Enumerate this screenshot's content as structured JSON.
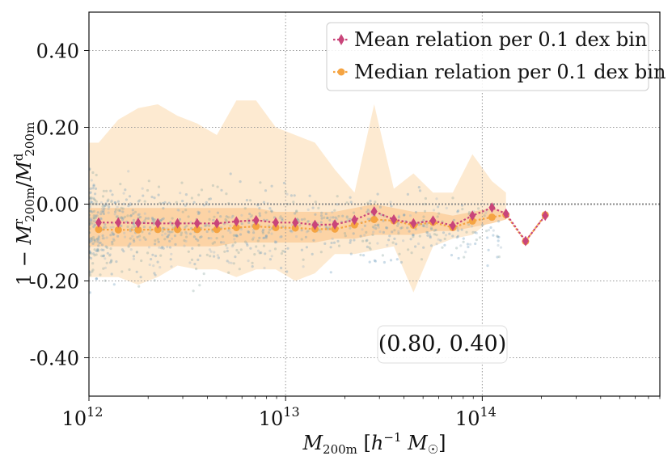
{
  "chart_data": {
    "type": "scatter",
    "title": "",
    "xlabel": "M_200m [h^-1 M_☉]",
    "ylabel": "1 − M^r_200m / M^d_200m",
    "xscale": "log",
    "xlim": [
      1000000000000.0,
      800000000000000.0
    ],
    "ylim": [
      -0.5,
      0.5
    ],
    "x_ticks": [
      {
        "value": 1000000000000.0,
        "base": "10",
        "exp": "12"
      },
      {
        "value": 10000000000000.0,
        "base": "10",
        "exp": "13"
      },
      {
        "value": 100000000000000.0,
        "base": "10",
        "exp": "14"
      }
    ],
    "y_ticks": [
      {
        "value": 0.4,
        "label": "0.40"
      },
      {
        "value": 0.2,
        "label": "0.20"
      },
      {
        "value": 0.0,
        "label": "0.00"
      },
      {
        "value": -0.2,
        "label": "-0.20"
      },
      {
        "value": -0.4,
        "label": "-0.40"
      }
    ],
    "grid": true,
    "annotation": "(0.80, 0.40)",
    "legend": {
      "position": "top-right"
    },
    "series": [
      {
        "name": "Mean relation per 0.1 dex bin",
        "color": "#c9457a",
        "marker": "diamond",
        "x": [
          1120000000000.0,
          1410000000000.0,
          1780000000000.0,
          2240000000000.0,
          2820000000000.0,
          3550000000000.0,
          4470000000000.0,
          5620000000000.0,
          7080000000000.0,
          8910000000000.0,
          11200000000000.0,
          14100000000000.0,
          17800000000000.0,
          22400000000000.0,
          28200000000000.0,
          35500000000000.0,
          44700000000000.0,
          56200000000000.0,
          70800000000000.0,
          89100000000000.0,
          112000000000000.0,
          132000000000000.0,
          166000000000000.0,
          209000000000000.0
        ],
        "y": [
          -0.048,
          -0.048,
          -0.049,
          -0.05,
          -0.05,
          -0.05,
          -0.05,
          -0.045,
          -0.042,
          -0.048,
          -0.048,
          -0.054,
          -0.053,
          -0.041,
          -0.019,
          -0.04,
          -0.05,
          -0.043,
          -0.056,
          -0.03,
          -0.009,
          -0.025,
          -0.096,
          -0.03
        ]
      },
      {
        "name": "Median relation per 0.1 dex bin",
        "color": "#f5a442",
        "marker": "circle",
        "x": [
          1120000000000.0,
          1410000000000.0,
          1780000000000.0,
          2240000000000.0,
          2820000000000.0,
          3550000000000.0,
          4470000000000.0,
          5620000000000.0,
          7080000000000.0,
          8910000000000.0,
          11200000000000.0,
          14100000000000.0,
          17800000000000.0,
          22400000000000.0,
          28200000000000.0,
          35500000000000.0,
          44700000000000.0,
          56200000000000.0,
          70800000000000.0,
          89100000000000.0,
          112000000000000.0,
          132000000000000.0,
          166000000000000.0,
          209000000000000.0
        ],
        "y": [
          -0.066,
          -0.067,
          -0.067,
          -0.066,
          -0.066,
          -0.066,
          -0.066,
          -0.061,
          -0.058,
          -0.061,
          -0.062,
          -0.065,
          -0.065,
          -0.054,
          -0.04,
          -0.043,
          -0.055,
          -0.047,
          -0.061,
          -0.044,
          -0.034,
          -0.028,
          -0.097,
          -0.028
        ]
      }
    ],
    "bands": [
      {
        "name": "outer percentile band",
        "color": "#fde6c9",
        "x": [
          1000000000000.0,
          1120000000000.0,
          1410000000000.0,
          1780000000000.0,
          2240000000000.0,
          2820000000000.0,
          3550000000000.0,
          4470000000000.0,
          5620000000000.0,
          7080000000000.0,
          8910000000000.0,
          11200000000000.0,
          14100000000000.0,
          17800000000000.0,
          22400000000000.0,
          28200000000000.0,
          35500000000000.0,
          44700000000000.0,
          56200000000000.0,
          70800000000000.0,
          89100000000000.0,
          112000000000000.0,
          132000000000000.0
        ],
        "upper": [
          0.16,
          0.16,
          0.22,
          0.25,
          0.26,
          0.23,
          0.21,
          0.18,
          0.27,
          0.27,
          0.2,
          0.18,
          0.16,
          0.09,
          0.03,
          0.26,
          0.04,
          0.08,
          0.03,
          0.03,
          0.13,
          0.06,
          0.03
        ],
        "lower": [
          -0.19,
          -0.19,
          -0.19,
          -0.21,
          -0.19,
          -0.16,
          -0.17,
          -0.17,
          -0.19,
          -0.17,
          -0.17,
          -0.2,
          -0.18,
          -0.13,
          -0.13,
          -0.12,
          -0.11,
          -0.23,
          -0.11,
          -0.09,
          -0.08,
          -0.04,
          -0.03
        ]
      },
      {
        "name": "inner percentile band",
        "color": "#fccf9e",
        "x": [
          1000000000000.0,
          1120000000000.0,
          1410000000000.0,
          1780000000000.0,
          2240000000000.0,
          2820000000000.0,
          3550000000000.0,
          4470000000000.0,
          5620000000000.0,
          7080000000000.0,
          8910000000000.0,
          11200000000000.0,
          14100000000000.0,
          17800000000000.0,
          22400000000000.0,
          28200000000000.0,
          35500000000000.0,
          44700000000000.0,
          56200000000000.0,
          70800000000000.0,
          89100000000000.0,
          112000000000000.0,
          132000000000000.0
        ],
        "upper": [
          -0.01,
          -0.01,
          -0.01,
          -0.01,
          -0.01,
          -0.01,
          -0.01,
          -0.01,
          -0.01,
          -0.01,
          -0.02,
          -0.02,
          -0.02,
          -0.02,
          -0.01,
          0.0,
          -0.01,
          -0.02,
          -0.02,
          -0.03,
          -0.02,
          -0.01,
          -0.02
        ],
        "lower": [
          -0.11,
          -0.11,
          -0.11,
          -0.11,
          -0.11,
          -0.11,
          -0.11,
          -0.11,
          -0.1,
          -0.1,
          -0.1,
          -0.1,
          -0.1,
          -0.09,
          -0.09,
          -0.08,
          -0.08,
          -0.08,
          -0.07,
          -0.07,
          -0.06,
          -0.05,
          -0.04
        ]
      }
    ],
    "reference_line": {
      "y": 0.0,
      "color": "#888888"
    },
    "scatter_cloud": {
      "description_free": true,
      "color": "#5b8fb3"
    }
  }
}
